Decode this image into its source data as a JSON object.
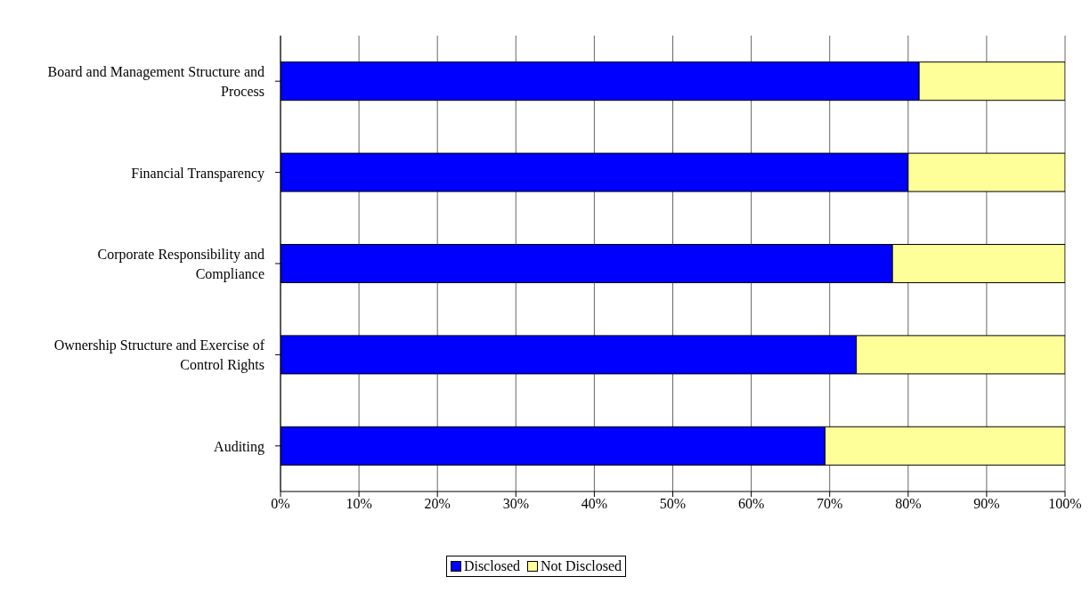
{
  "chart_data": {
    "type": "bar",
    "orientation": "horizontal",
    "stacked": true,
    "categories": [
      "Board and Management Structure and Process",
      "Financial Transparency",
      "Corporate Responsibility and Compliance",
      "Ownership Structure and Exercise of Control Rights",
      "Auditing"
    ],
    "series": [
      {
        "name": "Disclosed",
        "color": "#0000ff",
        "values": [
          81.4,
          80,
          78,
          73.4,
          69.4
        ]
      },
      {
        "name": "Not Disclosed",
        "color": "#ffff99",
        "values": [
          18.6,
          20,
          22,
          26.6,
          30.6
        ]
      }
    ],
    "xlim": [
      0,
      100
    ],
    "xticks": [
      {
        "value": 0,
        "label": "0%"
      },
      {
        "value": 10,
        "label": "10%"
      },
      {
        "value": 20,
        "label": "20%"
      },
      {
        "value": 30,
        "label": "30%"
      },
      {
        "value": 40,
        "label": "40%"
      },
      {
        "value": 50,
        "label": "50%"
      },
      {
        "value": 60,
        "label": "60%"
      },
      {
        "value": 70,
        "label": "70%"
      },
      {
        "value": 80,
        "label": "80%"
      },
      {
        "value": 90,
        "label": "90%"
      },
      {
        "value": 100,
        "label": "100%"
      }
    ],
    "grid": "x",
    "legend": "bottom"
  }
}
